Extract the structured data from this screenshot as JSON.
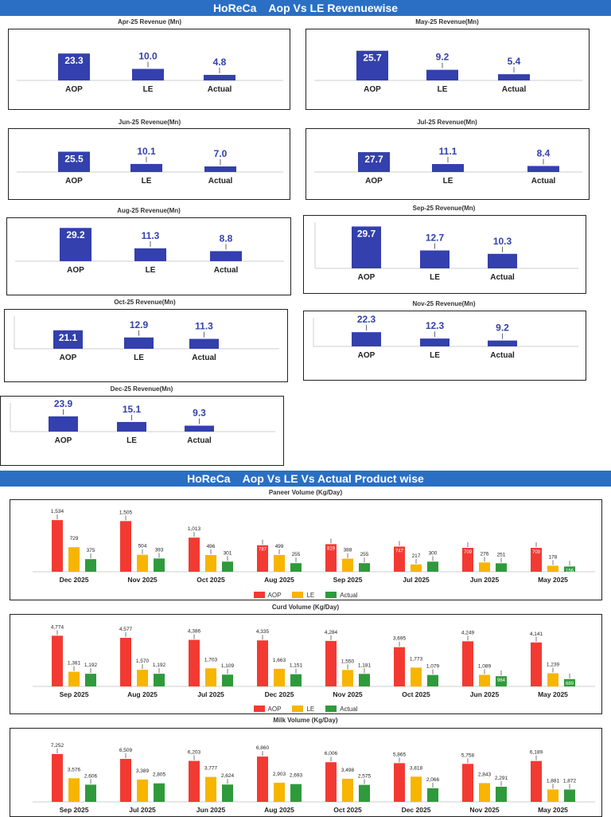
{
  "colors": {
    "banner": "#2a6fc4",
    "rev_bar": "#3340ad",
    "rev_label": "#3340ad",
    "aop": "#f23a33",
    "le": "#f7b500",
    "actual": "#2f9a3c"
  },
  "banners": {
    "revenue": "HoReCa    Aop Vs LE Revenuewise",
    "product": "HoReCa    Aop Vs LE Vs Actual Product wise"
  },
  "legend": {
    "aop": "AOP",
    "le": "LE",
    "actual": "Actual"
  },
  "chart_data": [
    {
      "type": "bar",
      "title": "Apr-25 Revenue (Mn)",
      "categories": [
        "AOP",
        "LE",
        "Actual"
      ],
      "values": [
        23.3,
        10.0,
        4.8
      ],
      "value_labels": [
        "23.3",
        "10.0",
        "4.8"
      ]
    },
    {
      "type": "bar",
      "title": "May-25 Revenue(Mn)",
      "categories": [
        "AOP",
        "LE",
        "Actual"
      ],
      "values": [
        25.7,
        9.2,
        5.4
      ],
      "value_labels": [
        "25.7",
        "9.2",
        "5.4"
      ]
    },
    {
      "type": "bar",
      "title": "Jun-25 Revenue(Mn)",
      "categories": [
        "AOP",
        "LE",
        "Actual"
      ],
      "values": [
        25.5,
        10.1,
        7.0
      ],
      "value_labels": [
        "25.5",
        "10.1",
        "7.0"
      ]
    },
    {
      "type": "bar",
      "title": "Jul-25 Revenue(Mn)",
      "categories": [
        "AOP",
        "LE",
        "Actual"
      ],
      "values": [
        27.7,
        11.1,
        8.4
      ],
      "value_labels": [
        "27.7",
        "11.1",
        "8.4"
      ]
    },
    {
      "type": "bar",
      "title": "Aug-25 Revenue(Mn)",
      "categories": [
        "AOP",
        "LE",
        "Actual"
      ],
      "values": [
        29.2,
        11.3,
        8.8
      ],
      "value_labels": [
        "29.2",
        "11.3",
        "8.8"
      ]
    },
    {
      "type": "bar",
      "title": "Sep-25 Revenue(Mn)",
      "categories": [
        "AOP",
        "LE",
        "Actual"
      ],
      "values": [
        29.7,
        12.7,
        10.3
      ],
      "value_labels": [
        "29.7",
        "12.7",
        "10.3"
      ]
    },
    {
      "type": "bar",
      "title": "Oct-25 Revenue(Mn)",
      "categories": [
        "AOP",
        "LE",
        "Actual"
      ],
      "values": [
        21.1,
        12.9,
        11.3
      ],
      "value_labels": [
        "21.1",
        "12.9",
        "11.3"
      ]
    },
    {
      "type": "bar",
      "title": "Nov-25 Revenue(Mn)",
      "categories": [
        "AOP",
        "LE",
        "Actual"
      ],
      "values": [
        22.3,
        12.3,
        9.2
      ],
      "value_labels": [
        "22.3",
        "12.3",
        "9.2"
      ]
    },
    {
      "type": "bar",
      "title": "Dec-25 Revenue(Mn)",
      "categories": [
        "AOP",
        "LE",
        "Actual"
      ],
      "values": [
        23.9,
        15.1,
        9.3
      ],
      "value_labels": [
        "23.9",
        "15.1",
        "9.3"
      ]
    },
    {
      "type": "bar",
      "title": "Paneer Volume (Kg/Day)",
      "categories": [
        "Dec 2025",
        "Nov 2025",
        "Oct 2025",
        "Aug 2025",
        "Sep 2025",
        "Jul 2025",
        "Jun 2025",
        "May 2025"
      ],
      "series": [
        {
          "name": "AOP",
          "values": [
            1534,
            1505,
            1013,
            787,
            819,
            747,
            709,
            709
          ],
          "labels": [
            "1,534",
            "1,505",
            "1,013",
            "787",
            "819",
            "747",
            "709",
            "709"
          ]
        },
        {
          "name": "LE",
          "values": [
            729,
            504,
            496,
            499,
            388,
            217,
            276,
            178
          ],
          "labels": [
            "729",
            "504",
            "496",
            "499",
            "388",
            "217",
            "276",
            "178"
          ]
        },
        {
          "name": "Actual",
          "values": [
            375,
            393,
            301,
            255,
            255,
            300,
            251,
            156
          ],
          "labels": [
            "375",
            "393",
            "301",
            "255",
            "255",
            "300",
            "251",
            "156"
          ]
        }
      ],
      "ymax": 1750
    },
    {
      "type": "bar",
      "title": "Curd Volume (Kg/Day)",
      "categories": [
        "Sep 2025",
        "Aug 2025",
        "Jul 2025",
        "Dec 2025",
        "Nov 2025",
        "Oct 2025",
        "Jun 2025",
        "May 2025"
      ],
      "series": [
        {
          "name": "AOP",
          "values": [
            4774,
            4577,
            4386,
            4335,
            4284,
            3695,
            4249,
            4141
          ],
          "labels": [
            "4,774",
            "4,577",
            "4,386",
            "4,335",
            "4,284",
            "3,695",
            "4,249",
            "4,141"
          ]
        },
        {
          "name": "LE",
          "values": [
            1381,
            1570,
            1703,
            1663,
            1550,
            1773,
            1089,
            1239
          ],
          "labels": [
            "1,381",
            "1,570",
            "1,703",
            "1,663",
            "1,550",
            "1,773",
            "1,089",
            "1,239"
          ]
        },
        {
          "name": "Actual",
          "values": [
            1192,
            1192,
            1109,
            1151,
            1181,
            1079,
            964,
            689
          ],
          "labels": [
            "1,192",
            "1,192",
            "1,109",
            "1,151",
            "1,181",
            "1,079",
            "964",
            "689"
          ]
        }
      ],
      "ymax": 5400
    },
    {
      "type": "bar",
      "title": "Milk Volume (Kg/Day)",
      "categories": [
        "Sep 2025",
        "Jul 2025",
        "Jun 2025",
        "Aug 2025",
        "Oct 2025",
        "Dec 2025",
        "Nov 2025",
        "May 2025"
      ],
      "series": [
        {
          "name": "AOP",
          "values": [
            7252,
            6509,
            6203,
            6860,
            6006,
            5865,
            5758,
            6189
          ],
          "labels": [
            "7,252",
            "6,509",
            "6,203",
            "6,860",
            "6,006",
            "5,865",
            "5,758",
            "6,189"
          ]
        },
        {
          "name": "LE",
          "values": [
            3576,
            3389,
            3777,
            2903,
            3498,
            3818,
            2843,
            1881
          ],
          "labels": [
            "3,576",
            "3,389",
            "3,777",
            "2,903",
            "3,498",
            "3,818",
            "2,843",
            "1,881"
          ]
        },
        {
          "name": "Actual",
          "values": [
            2606,
            2805,
            2624,
            2693,
            2575,
            2066,
            2291,
            1872
          ],
          "labels": [
            "2,606",
            "2,805",
            "2,624",
            "2,693",
            "2,575",
            "2,066",
            "2,291",
            "1,872"
          ]
        }
      ],
      "ymax": 8200
    }
  ]
}
